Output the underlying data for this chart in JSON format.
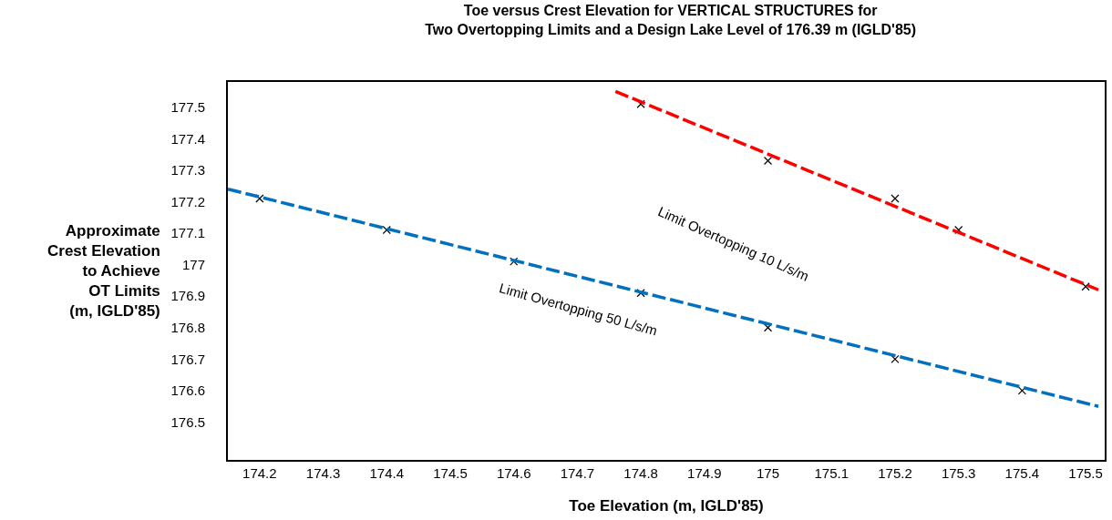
{
  "chart_data": {
    "type": "scatter",
    "title": "Toe versus Crest Elevation for VERTICAL STRUCTURES for\nTwo Overtopping Limits and a Design Lake Level of 176.39 m (IGLD'85)",
    "xlabel": "Toe Elevation (m, IGLD'85)",
    "ylabel": "Approximate\nCrest Elevation\nto Achieve\nOT Limits\n(m, IGLD'85)",
    "series": [
      {
        "color": "#000000",
        "marker": "cross",
        "x": [
          174.2,
          174.4,
          174.6,
          174.8,
          175.0,
          175.2,
          175.4
        ],
        "values": [
          177.21,
          177.11,
          177.01,
          176.91,
          176.8,
          176.7,
          176.6
        ]
      },
      {
        "color": "#000000",
        "marker": "cross",
        "x": [
          174.8,
          175.0,
          175.2,
          175.3,
          175.5
        ],
        "values": [
          177.51,
          177.33,
          177.21,
          177.11,
          176.93
        ]
      },
      {
        "type": "line",
        "color": "#0070c0",
        "line_style": "dashed",
        "x": [
          174.15,
          175.52
        ],
        "values": [
          177.24,
          176.55
        ]
      },
      {
        "type": "line",
        "color": "#ff0000",
        "line_style": "dashed",
        "x": [
          174.76,
          175.52
        ],
        "values": [
          177.55,
          176.92
        ]
      }
    ],
    "annotations": [
      "Limit Overtopping 50 L/s/m",
      "Limit Overtopping 10 L/s/m"
    ],
    "xlim": [
      174.15,
      175.53
    ],
    "xticks": [
      174.2,
      174.3,
      174.4,
      174.5,
      174.6,
      174.7,
      174.8,
      174.9,
      {
        "value": 175,
        "label": "175"
      },
      175.1,
      175.2,
      175.3,
      175.4,
      175.5
    ],
    "ylim": [
      176.38,
      177.58
    ],
    "yticks": [
      176.5,
      176.6,
      176.7,
      176.8,
      176.9,
      {
        "value": 177,
        "label": "177"
      },
      177.1,
      177.2,
      177.3,
      177.4,
      177.5
    ],
    "grid": false
  }
}
